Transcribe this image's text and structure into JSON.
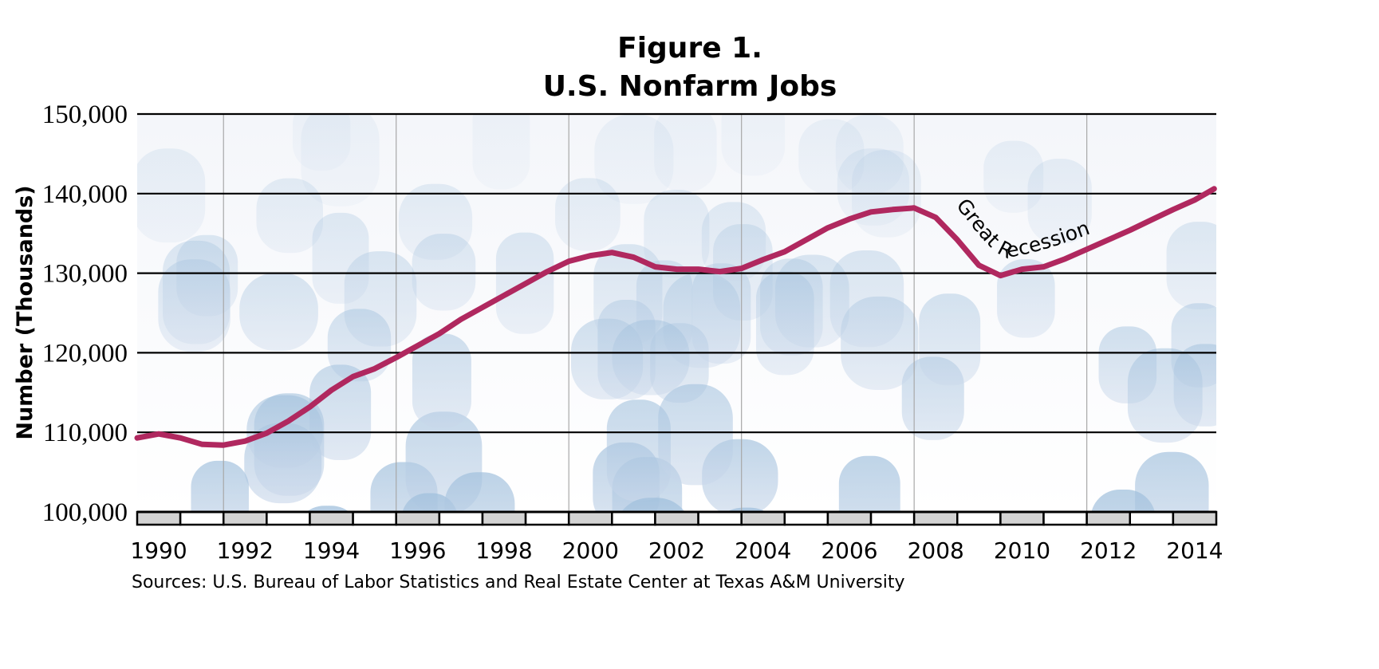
{
  "chart_data": {
    "type": "line",
    "title": "Figure 1.",
    "subtitle": "U.S. Nonfarm Jobs",
    "xlabel": "",
    "ylabel": "Number (Thousands)",
    "xlim": [
      1990,
      2015
    ],
    "ylim": [
      100000,
      150000
    ],
    "y_ticks": [
      "100,000",
      "110,000",
      "120,000",
      "130,000",
      "140,000",
      "150,000"
    ],
    "x_ticks": [
      "1990",
      "1992",
      "1994",
      "1996",
      "1998",
      "2000",
      "2002",
      "2004",
      "2006",
      "2008",
      "2010",
      "2012",
      "2014"
    ],
    "grid": true,
    "line_color": "#b0285f",
    "annotation": "Great Recession",
    "source": "Sources: U.S. Bureau of Labor Statistics and Real Estate Center at Texas A&M University",
    "series": [
      {
        "x": [
          1990.0,
          1990.5,
          1991.0,
          1991.5,
          1992.0,
          1992.5,
          1993.0,
          1993.5,
          1994.0,
          1994.5,
          1995.0,
          1995.5,
          1996.0,
          1996.5,
          1997.0,
          1997.5,
          1998.0,
          1998.5,
          1999.0,
          1999.5,
          2000.0,
          2000.5,
          2001.0,
          2001.5,
          2002.0,
          2002.5,
          2003.0,
          2003.5,
          2004.0,
          2004.5,
          2005.0,
          2005.5,
          2006.0,
          2006.5,
          2007.0,
          2007.5,
          2008.0,
          2008.5,
          2009.0,
          2009.5,
          2010.0,
          2010.5,
          2011.0,
          2011.5,
          2012.0,
          2012.5,
          2013.0,
          2013.5,
          2014.0,
          2014.5,
          2014.95
        ],
        "values": [
          109300,
          109800,
          109300,
          108500,
          108400,
          108900,
          109900,
          111400,
          113200,
          115300,
          117000,
          118000,
          119400,
          120900,
          122400,
          124200,
          125700,
          127200,
          128700,
          130200,
          131500,
          132200,
          132600,
          132000,
          130800,
          130500,
          130500,
          130200,
          130600,
          131700,
          132700,
          134200,
          135700,
          136800,
          137700,
          138000,
          138200,
          137000,
          134200,
          131000,
          129700,
          130500,
          130800,
          131800,
          133000,
          134200,
          135400,
          136700,
          138000,
          139200,
          140600
        ]
      }
    ]
  }
}
